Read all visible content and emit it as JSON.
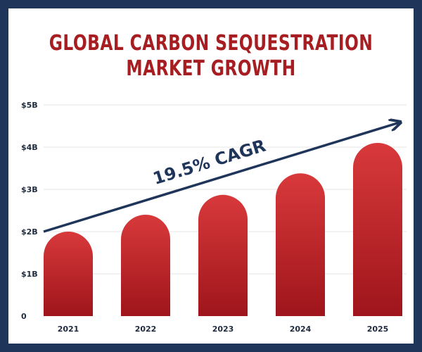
{
  "title_lines": [
    "GLOBAL CARBON SEQUESTRATION",
    "MARKET GROWTH"
  ],
  "annotation": "19.5% CAGR",
  "colors": {
    "frame": "#1f3559",
    "title": "#a71e22",
    "bar_top": "#d8393b",
    "bar_bottom": "#9e151b",
    "arrow": "#1f3559",
    "grid": "#e6e6e6"
  },
  "chart_data": {
    "type": "bar",
    "title": "GLOBAL CARBON SEQUESTRATION MARKET GROWTH",
    "categories": [
      "2021",
      "2022",
      "2023",
      "2024",
      "2025"
    ],
    "values": [
      2.0,
      2.4,
      2.87,
      3.38,
      4.1
    ],
    "y_tick_labels": [
      "0",
      "$1B",
      "$2B",
      "$3B",
      "$4B",
      "$5B"
    ],
    "y_ticks": [
      0,
      1,
      2,
      3,
      4,
      5
    ],
    "ylim": [
      0,
      5
    ],
    "unit": "$B",
    "grid": true,
    "annotation": "19.5% CAGR"
  }
}
